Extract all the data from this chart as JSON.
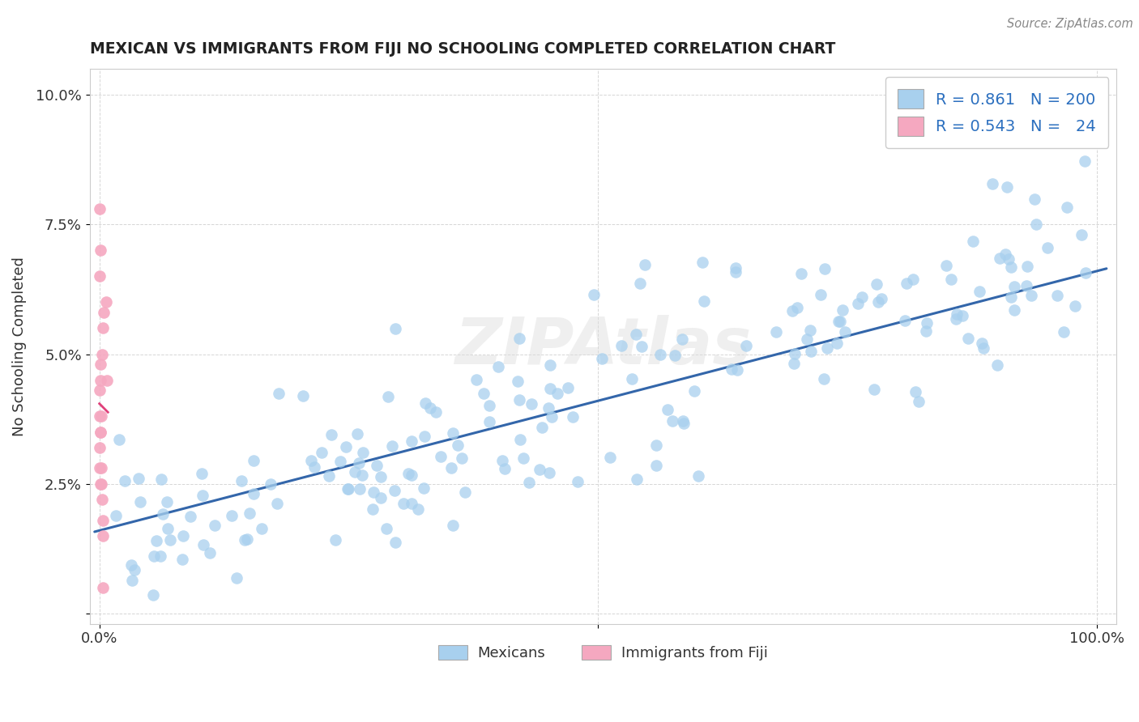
{
  "title": "MEXICAN VS IMMIGRANTS FROM FIJI NO SCHOOLING COMPLETED CORRELATION CHART",
  "source_text": "Source: ZipAtlas.com",
  "ylabel": "No Schooling Completed",
  "xlim": [
    -0.01,
    1.02
  ],
  "ylim": [
    -0.002,
    0.105
  ],
  "x_ticks": [
    0.0,
    0.5,
    1.0
  ],
  "x_tick_labels": [
    "0.0%",
    "",
    "100.0%"
  ],
  "y_ticks": [
    0.0,
    0.025,
    0.05,
    0.075,
    0.1
  ],
  "y_tick_labels": [
    "",
    "2.5%",
    "5.0%",
    "7.5%",
    "10.0%"
  ],
  "blue_R": 0.861,
  "blue_N": 200,
  "pink_R": 0.543,
  "pink_N": 24,
  "blue_color": "#A8D0EE",
  "blue_line_color": "#3366AA",
  "pink_color": "#F5A8C0",
  "pink_line_color": "#E0407A",
  "watermark": "ZIPAtlas",
  "legend_blue_label": "Mexicans",
  "legend_pink_label": "Immigrants from Fiji",
  "blue_seed": 77,
  "pink_seed": 55
}
